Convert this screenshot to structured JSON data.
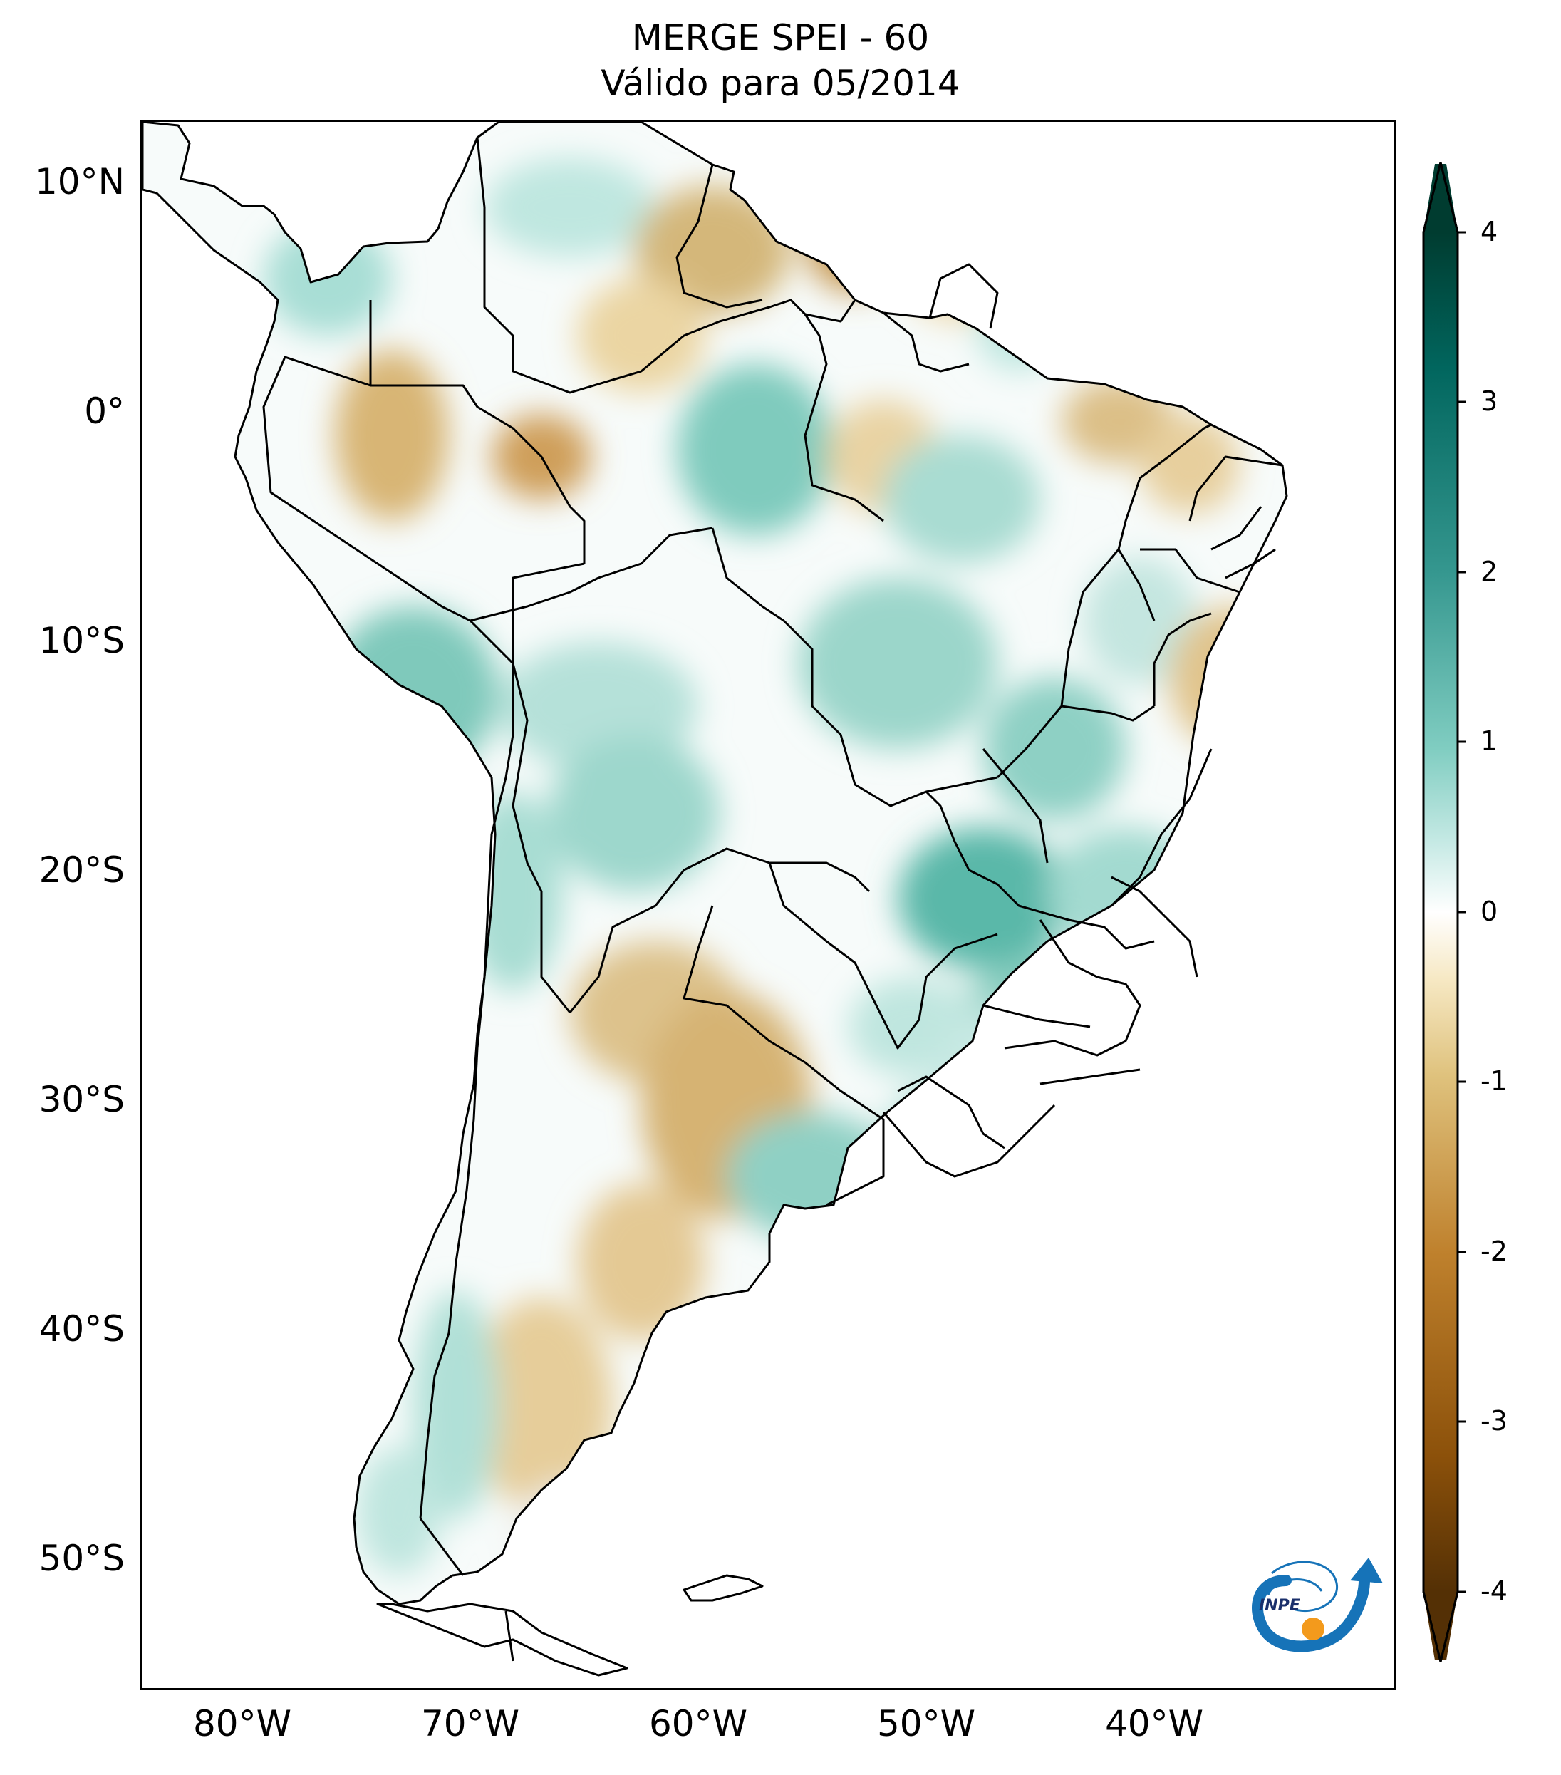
{
  "title": {
    "line1": "MERGE   SPEI - 60",
    "line2": "Válido para 05/2014"
  },
  "map": {
    "region": "South America",
    "variable": "SPEI-60",
    "lon_range": [
      -85,
      -30
    ],
    "lat_range": [
      -56,
      13
    ],
    "lat_ticks": [
      "10°N",
      "0°",
      "10°S",
      "20°S",
      "30°S",
      "40°S",
      "50°S"
    ],
    "lon_ticks": [
      "80°W",
      "70°W",
      "60°W",
      "50°W",
      "40°W"
    ]
  },
  "colorbar": {
    "ticks": [
      "4",
      "3",
      "2",
      "1",
      "0",
      "-1",
      "-2",
      "-3",
      "-4"
    ],
    "min": -4,
    "max": 4,
    "extend": "both",
    "colormap": "BrBG",
    "colors": [
      "#543005",
      "#8c510a",
      "#bf812d",
      "#dfc27d",
      "#f6e8c3",
      "#ffffff",
      "#c7eae5",
      "#80cdc1",
      "#35978f",
      "#01665e",
      "#003c30"
    ]
  },
  "logo": {
    "text": "INPE"
  }
}
